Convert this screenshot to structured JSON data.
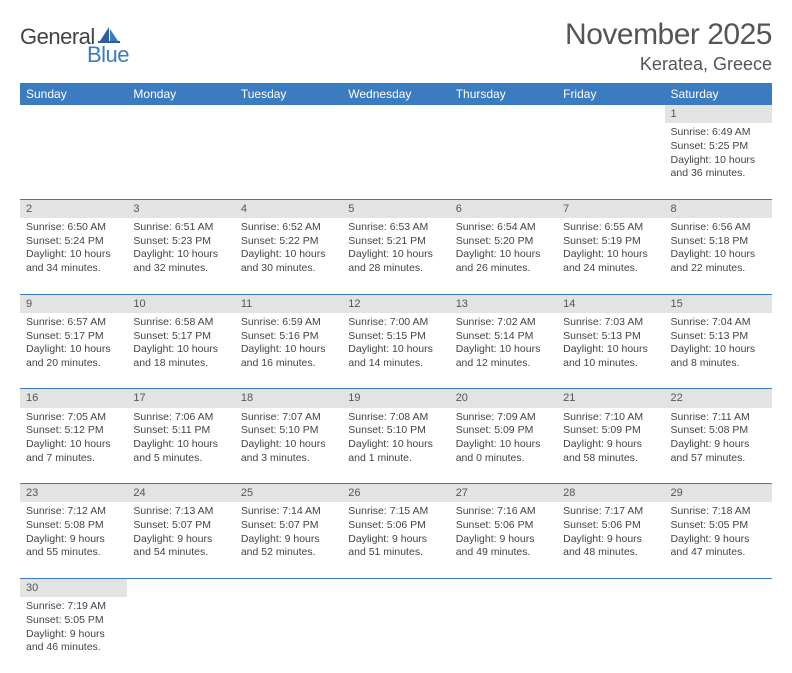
{
  "logo": {
    "part1": "General",
    "part2": "Blue"
  },
  "title": "November 2025",
  "location": "Keratea, Greece",
  "colors": {
    "header_bg": "#3b7bbf",
    "header_text": "#ffffff",
    "daynum_bg": "#e3e3e3",
    "text": "#444444",
    "logo_blue": "#3b7bbf"
  },
  "weekdays": [
    "Sunday",
    "Monday",
    "Tuesday",
    "Wednesday",
    "Thursday",
    "Friday",
    "Saturday"
  ],
  "weeks": [
    [
      null,
      null,
      null,
      null,
      null,
      null,
      {
        "n": "1",
        "sunrise": "Sunrise: 6:49 AM",
        "sunset": "Sunset: 5:25 PM",
        "day1": "Daylight: 10 hours",
        "day2": "and 36 minutes."
      }
    ],
    [
      {
        "n": "2",
        "sunrise": "Sunrise: 6:50 AM",
        "sunset": "Sunset: 5:24 PM",
        "day1": "Daylight: 10 hours",
        "day2": "and 34 minutes."
      },
      {
        "n": "3",
        "sunrise": "Sunrise: 6:51 AM",
        "sunset": "Sunset: 5:23 PM",
        "day1": "Daylight: 10 hours",
        "day2": "and 32 minutes."
      },
      {
        "n": "4",
        "sunrise": "Sunrise: 6:52 AM",
        "sunset": "Sunset: 5:22 PM",
        "day1": "Daylight: 10 hours",
        "day2": "and 30 minutes."
      },
      {
        "n": "5",
        "sunrise": "Sunrise: 6:53 AM",
        "sunset": "Sunset: 5:21 PM",
        "day1": "Daylight: 10 hours",
        "day2": "and 28 minutes."
      },
      {
        "n": "6",
        "sunrise": "Sunrise: 6:54 AM",
        "sunset": "Sunset: 5:20 PM",
        "day1": "Daylight: 10 hours",
        "day2": "and 26 minutes."
      },
      {
        "n": "7",
        "sunrise": "Sunrise: 6:55 AM",
        "sunset": "Sunset: 5:19 PM",
        "day1": "Daylight: 10 hours",
        "day2": "and 24 minutes."
      },
      {
        "n": "8",
        "sunrise": "Sunrise: 6:56 AM",
        "sunset": "Sunset: 5:18 PM",
        "day1": "Daylight: 10 hours",
        "day2": "and 22 minutes."
      }
    ],
    [
      {
        "n": "9",
        "sunrise": "Sunrise: 6:57 AM",
        "sunset": "Sunset: 5:17 PM",
        "day1": "Daylight: 10 hours",
        "day2": "and 20 minutes."
      },
      {
        "n": "10",
        "sunrise": "Sunrise: 6:58 AM",
        "sunset": "Sunset: 5:17 PM",
        "day1": "Daylight: 10 hours",
        "day2": "and 18 minutes."
      },
      {
        "n": "11",
        "sunrise": "Sunrise: 6:59 AM",
        "sunset": "Sunset: 5:16 PM",
        "day1": "Daylight: 10 hours",
        "day2": "and 16 minutes."
      },
      {
        "n": "12",
        "sunrise": "Sunrise: 7:00 AM",
        "sunset": "Sunset: 5:15 PM",
        "day1": "Daylight: 10 hours",
        "day2": "and 14 minutes."
      },
      {
        "n": "13",
        "sunrise": "Sunrise: 7:02 AM",
        "sunset": "Sunset: 5:14 PM",
        "day1": "Daylight: 10 hours",
        "day2": "and 12 minutes."
      },
      {
        "n": "14",
        "sunrise": "Sunrise: 7:03 AM",
        "sunset": "Sunset: 5:13 PM",
        "day1": "Daylight: 10 hours",
        "day2": "and 10 minutes."
      },
      {
        "n": "15",
        "sunrise": "Sunrise: 7:04 AM",
        "sunset": "Sunset: 5:13 PM",
        "day1": "Daylight: 10 hours",
        "day2": "and 8 minutes."
      }
    ],
    [
      {
        "n": "16",
        "sunrise": "Sunrise: 7:05 AM",
        "sunset": "Sunset: 5:12 PM",
        "day1": "Daylight: 10 hours",
        "day2": "and 7 minutes."
      },
      {
        "n": "17",
        "sunrise": "Sunrise: 7:06 AM",
        "sunset": "Sunset: 5:11 PM",
        "day1": "Daylight: 10 hours",
        "day2": "and 5 minutes."
      },
      {
        "n": "18",
        "sunrise": "Sunrise: 7:07 AM",
        "sunset": "Sunset: 5:10 PM",
        "day1": "Daylight: 10 hours",
        "day2": "and 3 minutes."
      },
      {
        "n": "19",
        "sunrise": "Sunrise: 7:08 AM",
        "sunset": "Sunset: 5:10 PM",
        "day1": "Daylight: 10 hours",
        "day2": "and 1 minute."
      },
      {
        "n": "20",
        "sunrise": "Sunrise: 7:09 AM",
        "sunset": "Sunset: 5:09 PM",
        "day1": "Daylight: 10 hours",
        "day2": "and 0 minutes."
      },
      {
        "n": "21",
        "sunrise": "Sunrise: 7:10 AM",
        "sunset": "Sunset: 5:09 PM",
        "day1": "Daylight: 9 hours",
        "day2": "and 58 minutes."
      },
      {
        "n": "22",
        "sunrise": "Sunrise: 7:11 AM",
        "sunset": "Sunset: 5:08 PM",
        "day1": "Daylight: 9 hours",
        "day2": "and 57 minutes."
      }
    ],
    [
      {
        "n": "23",
        "sunrise": "Sunrise: 7:12 AM",
        "sunset": "Sunset: 5:08 PM",
        "day1": "Daylight: 9 hours",
        "day2": "and 55 minutes."
      },
      {
        "n": "24",
        "sunrise": "Sunrise: 7:13 AM",
        "sunset": "Sunset: 5:07 PM",
        "day1": "Daylight: 9 hours",
        "day2": "and 54 minutes."
      },
      {
        "n": "25",
        "sunrise": "Sunrise: 7:14 AM",
        "sunset": "Sunset: 5:07 PM",
        "day1": "Daylight: 9 hours",
        "day2": "and 52 minutes."
      },
      {
        "n": "26",
        "sunrise": "Sunrise: 7:15 AM",
        "sunset": "Sunset: 5:06 PM",
        "day1": "Daylight: 9 hours",
        "day2": "and 51 minutes."
      },
      {
        "n": "27",
        "sunrise": "Sunrise: 7:16 AM",
        "sunset": "Sunset: 5:06 PM",
        "day1": "Daylight: 9 hours",
        "day2": "and 49 minutes."
      },
      {
        "n": "28",
        "sunrise": "Sunrise: 7:17 AM",
        "sunset": "Sunset: 5:06 PM",
        "day1": "Daylight: 9 hours",
        "day2": "and 48 minutes."
      },
      {
        "n": "29",
        "sunrise": "Sunrise: 7:18 AM",
        "sunset": "Sunset: 5:05 PM",
        "day1": "Daylight: 9 hours",
        "day2": "and 47 minutes."
      }
    ],
    [
      {
        "n": "30",
        "sunrise": "Sunrise: 7:19 AM",
        "sunset": "Sunset: 5:05 PM",
        "day1": "Daylight: 9 hours",
        "day2": "and 46 minutes."
      },
      null,
      null,
      null,
      null,
      null,
      null
    ]
  ]
}
